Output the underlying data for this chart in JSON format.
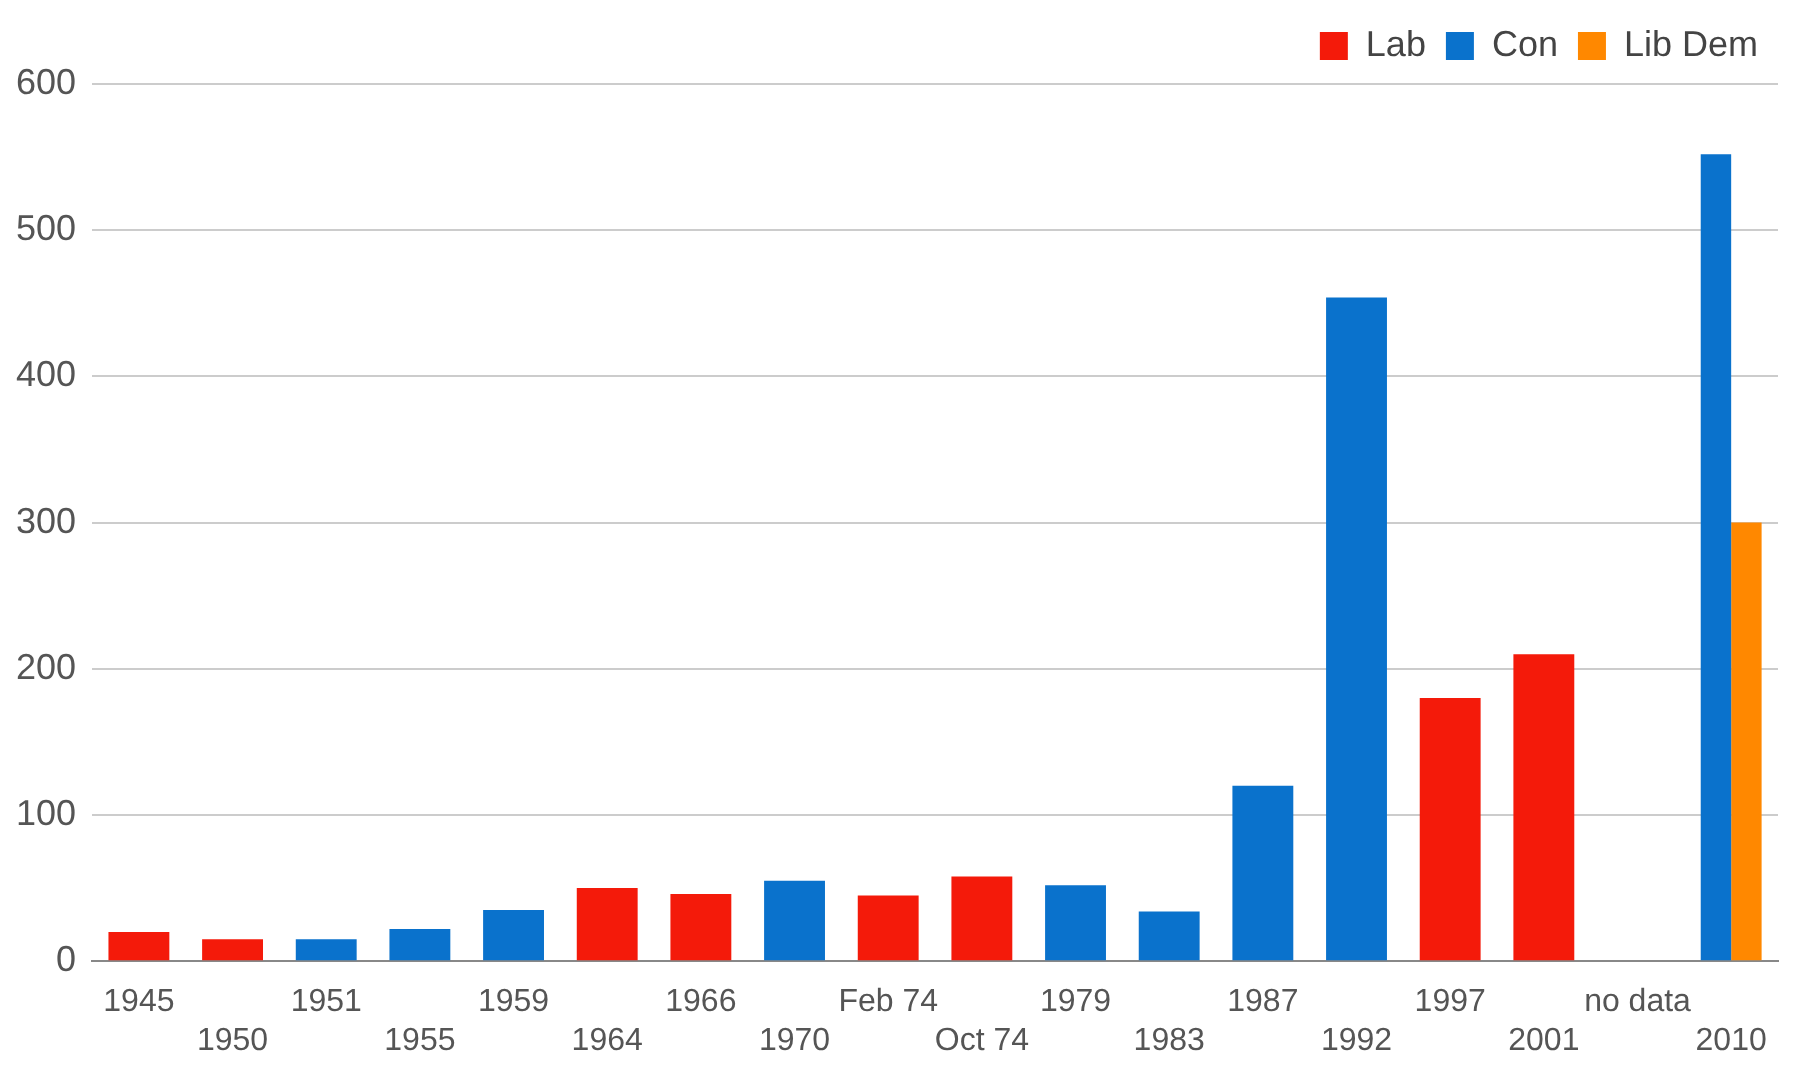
{
  "chart_data": {
    "type": "bar",
    "categories": [
      "1945",
      "1950",
      "1951",
      "1955",
      "1959",
      "1964",
      "1966",
      "1970",
      "Feb 74",
      "Oct 74",
      "1979",
      "1983",
      "1987",
      "1992",
      "1997",
      "2001",
      "no data",
      "2010"
    ],
    "series": [
      {
        "name": "Lab",
        "color": "#f41a0a",
        "values": [
          20,
          15,
          null,
          null,
          null,
          50,
          46,
          null,
          45,
          58,
          null,
          null,
          null,
          null,
          180,
          210,
          null,
          null
        ]
      },
      {
        "name": "Con",
        "color": "#0a72cc",
        "values": [
          null,
          null,
          15,
          22,
          35,
          null,
          null,
          55,
          null,
          null,
          52,
          34,
          120,
          454,
          null,
          null,
          null,
          552
        ]
      },
      {
        "name": "Lib Dem",
        "color": "#ff8800",
        "values": [
          null,
          null,
          null,
          null,
          null,
          null,
          null,
          null,
          null,
          null,
          null,
          null,
          null,
          null,
          null,
          null,
          null,
          300
        ]
      }
    ],
    "ylim": [
      0,
      600
    ],
    "yticks": [
      0,
      100,
      200,
      300,
      400,
      500,
      600
    ],
    "grid": "y",
    "legend": "top right"
  }
}
